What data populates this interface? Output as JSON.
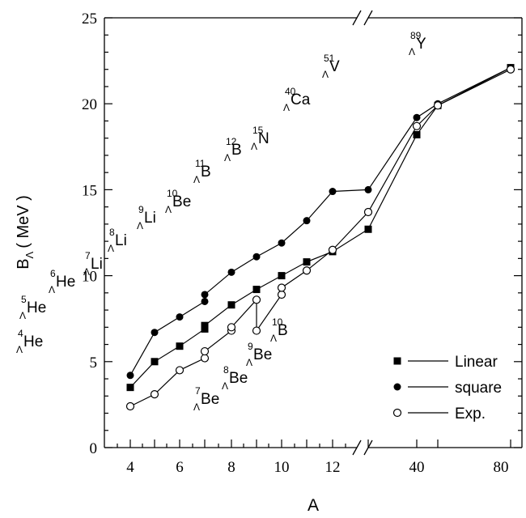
{
  "chart_data": {
    "type": "line",
    "xlabel": "A",
    "ylabel_main": "B",
    "ylabel_sub": "Λ",
    "ylabel_unit": "( MeV )",
    "ylim": [
      0,
      25
    ],
    "y_ticks": [
      "0",
      "5",
      "10",
      "15",
      "20",
      "25"
    ],
    "x_ticks": [
      "4",
      "6",
      "8",
      "10",
      "12",
      "40",
      "80"
    ],
    "x": [
      4,
      5,
      6,
      7,
      8,
      9,
      10,
      11,
      12,
      13,
      40,
      51,
      89
    ],
    "x_axis_break": "between 12 and 13 (bottom and top axes)",
    "series": [
      {
        "name": "Linear",
        "marker": "filled-square",
        "points": [
          [
            4,
            3.5
          ],
          [
            5,
            5.0
          ],
          [
            6,
            5.9
          ],
          [
            7,
            6.9
          ],
          [
            7,
            7.1
          ],
          [
            8,
            8.3
          ],
          [
            9,
            9.2
          ],
          [
            10,
            10.0
          ],
          [
            11,
            10.8
          ],
          [
            12,
            11.4
          ],
          [
            13,
            12.7
          ],
          [
            40,
            18.2
          ],
          [
            51,
            19.9
          ],
          [
            89,
            22.1
          ]
        ]
      },
      {
        "name": "square",
        "marker": "filled-circle",
        "points": [
          [
            4,
            4.2
          ],
          [
            5,
            6.7
          ],
          [
            6,
            7.6
          ],
          [
            7,
            8.5
          ],
          [
            7,
            8.9
          ],
          [
            8,
            10.2
          ],
          [
            9,
            11.1
          ],
          [
            10,
            11.9
          ],
          [
            11,
            13.2
          ],
          [
            12,
            14.9
          ],
          [
            13,
            15.0
          ],
          [
            40,
            19.2
          ],
          [
            51,
            20.0
          ],
          [
            89,
            22.1
          ]
        ]
      },
      {
        "name": "Exp.",
        "marker": "open-circle",
        "points": [
          [
            4,
            2.4
          ],
          [
            5,
            3.1
          ],
          [
            6,
            4.5
          ],
          [
            7,
            5.2
          ],
          [
            7,
            5.6
          ],
          [
            8,
            6.8
          ],
          [
            8,
            7.0
          ],
          [
            9,
            8.6
          ],
          [
            9,
            6.8
          ],
          [
            10,
            8.9
          ],
          [
            10,
            9.3
          ],
          [
            11,
            10.3
          ],
          [
            12,
            11.5
          ],
          [
            13,
            13.7
          ],
          [
            40,
            18.7
          ],
          [
            51,
            19.9
          ],
          [
            89,
            22.0
          ]
        ]
      }
    ],
    "annotations": [
      {
        "mass": "4",
        "hyper": "Λ",
        "element": "He"
      },
      {
        "mass": "5",
        "hyper": "Λ",
        "element": "He"
      },
      {
        "mass": "6",
        "hyper": "Λ",
        "element": "He"
      },
      {
        "mass": "7",
        "hyper": "Λ",
        "element": "Li"
      },
      {
        "mass": "8",
        "hyper": "Λ",
        "element": "Li"
      },
      {
        "mass": "9",
        "hyper": "Λ",
        "element": "Li"
      },
      {
        "mass": "10",
        "hyper": "Λ",
        "element": "Be"
      },
      {
        "mass": "11",
        "hyper": "Λ",
        "element": "B"
      },
      {
        "mass": "12",
        "hyper": "Λ",
        "element": "B"
      },
      {
        "mass": "15",
        "hyper": "Λ",
        "element": "N"
      },
      {
        "mass": "40",
        "hyper": "Λ",
        "element": "Ca"
      },
      {
        "mass": "51",
        "hyper": "Λ",
        "element": "V"
      },
      {
        "mass": "89",
        "hyper": "Λ",
        "element": "Y"
      },
      {
        "mass": "7",
        "hyper": "Λ",
        "element": "Be"
      },
      {
        "mass": "8",
        "hyper": "Λ",
        "element": "Be"
      },
      {
        "mass": "9",
        "hyper": "Λ",
        "element": "Be"
      },
      {
        "mass": "10",
        "hyper": "Λ",
        "element": "B"
      }
    ],
    "legend": {
      "placement": "bottom-right",
      "entries": [
        "Linear",
        "square",
        "Exp."
      ]
    }
  }
}
